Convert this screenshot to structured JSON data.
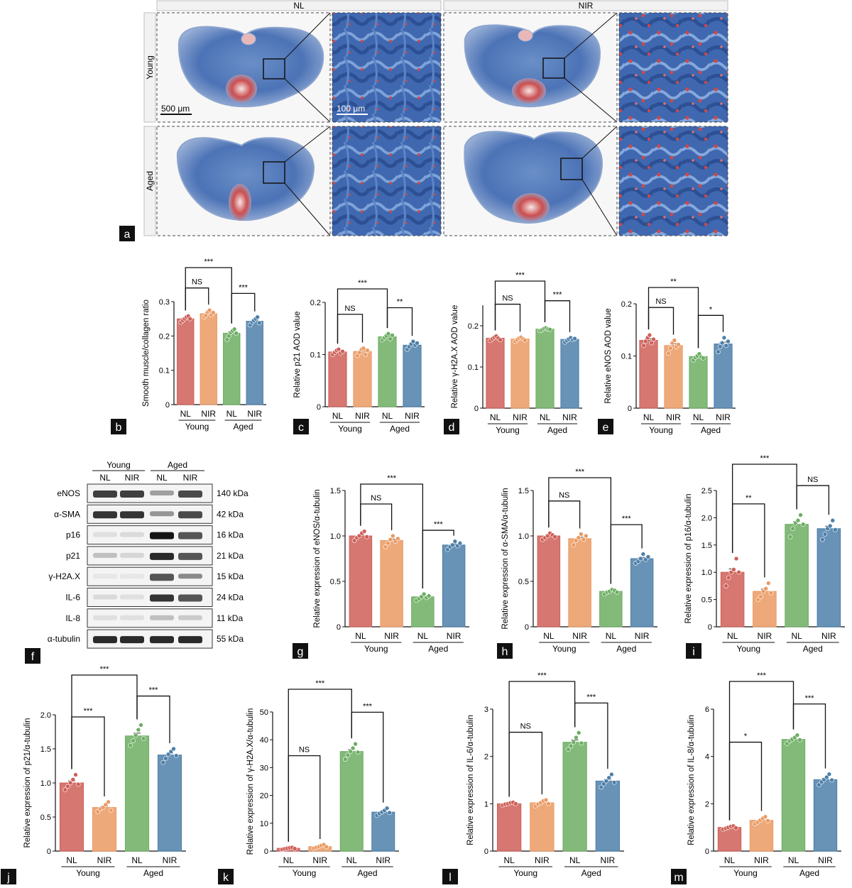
{
  "panel_a": {
    "col_headers": [
      "NL",
      "NIR"
    ],
    "row_headers": [
      "Young",
      "Aged"
    ],
    "scale_bars": [
      "500 μm",
      "100 μm"
    ],
    "letter": "a"
  },
  "panel_f": {
    "letter": "f",
    "groups": [
      "Young",
      "Aged"
    ],
    "lanes": [
      "NL",
      "NIR",
      "NL",
      "NIR"
    ],
    "proteins": [
      {
        "name": "eNOS",
        "kda": "140 kDa"
      },
      {
        "name": "α-SMA",
        "kda": "42 kDa"
      },
      {
        "name": "p16",
        "kda": "16 kDa"
      },
      {
        "name": "p21",
        "kda": "21 kDa"
      },
      {
        "name": "γ-H2A.X",
        "kda": "15 kDa"
      },
      {
        "name": "IL-6",
        "kda": "24 kDa"
      },
      {
        "name": "IL-8",
        "kda": "11 kDa"
      },
      {
        "name": "α-tubulin",
        "kda": "55 kDa"
      }
    ]
  },
  "colors": {
    "young_nl": "#cf5f58",
    "young_nir": "#ea9a63",
    "aged_nl": "#6dae63",
    "aged_nir": "#4d7fa9"
  },
  "chart_data": [
    {
      "id": "b",
      "type": "bar",
      "letter": "b",
      "ylabel": "Smooth muscle/collagen ratio",
      "ylim": [
        0,
        0.3
      ],
      "yticks": [
        "0",
        "0.1",
        "0.2",
        "0.3"
      ],
      "categories": [
        "NL",
        "NIR",
        "NL",
        "NIR"
      ],
      "groups": [
        "Young",
        "Aged"
      ],
      "values": [
        0.25,
        0.265,
        0.208,
        0.243
      ],
      "points": [
        [
          0.24,
          0.245,
          0.25,
          0.255,
          0.258,
          0.25
        ],
        [
          0.255,
          0.26,
          0.27,
          0.275,
          0.262,
          0.268
        ],
        [
          0.19,
          0.2,
          0.21,
          0.215,
          0.22,
          0.208
        ],
        [
          0.232,
          0.24,
          0.245,
          0.25,
          0.255,
          0.238
        ]
      ],
      "sig": [
        {
          "label": "***",
          "from": 0,
          "to": 2,
          "level": 2
        },
        {
          "label": "NS",
          "from": 0,
          "to": 1,
          "level": 1
        },
        {
          "label": "***",
          "from": 2,
          "to": 3,
          "level": 1
        }
      ]
    },
    {
      "id": "c",
      "type": "bar",
      "letter": "c",
      "ylabel": "Relative p21 AOD value",
      "ylim": [
        0,
        0.2
      ],
      "yticks": [
        "0",
        "0.1",
        "0.2"
      ],
      "categories": [
        "NL",
        "NIR",
        "NL",
        "NIR"
      ],
      "groups": [
        "Young",
        "Aged"
      ],
      "values": [
        0.105,
        0.106,
        0.134,
        0.118
      ],
      "points": [
        [
          0.1,
          0.104,
          0.108,
          0.11,
          0.103,
          0.106
        ],
        [
          0.098,
          0.104,
          0.11,
          0.112,
          0.1,
          0.108
        ],
        [
          0.128,
          0.132,
          0.136,
          0.14,
          0.13,
          0.137
        ],
        [
          0.11,
          0.115,
          0.12,
          0.125,
          0.118,
          0.122
        ]
      ],
      "sig": [
        {
          "label": "***",
          "from": 0,
          "to": 2,
          "level": 2
        },
        {
          "label": "NS",
          "from": 0,
          "to": 1,
          "level": 1
        },
        {
          "label": "**",
          "from": 2,
          "to": 3,
          "level": 1
        }
      ]
    },
    {
      "id": "d",
      "type": "bar",
      "letter": "d",
      "ylabel": "Relative γ-H2A.X AOD value",
      "ylim": [
        0,
        0.25
      ],
      "yticks": [
        "0",
        "0.1",
        "0.2"
      ],
      "categories": [
        "NL",
        "NIR",
        "NL",
        "NIR"
      ],
      "groups": [
        "Young",
        "Aged"
      ],
      "values": [
        0.17,
        0.168,
        0.192,
        0.167
      ],
      "points": [
        [
          0.164,
          0.168,
          0.172,
          0.175,
          0.17,
          0.166
        ],
        [
          0.162,
          0.166,
          0.17,
          0.172,
          0.168,
          0.165
        ],
        [
          0.188,
          0.19,
          0.193,
          0.195,
          0.192,
          0.191
        ],
        [
          0.16,
          0.164,
          0.168,
          0.171,
          0.166,
          0.169
        ]
      ],
      "sig": [
        {
          "label": "***",
          "from": 0,
          "to": 2,
          "level": 2
        },
        {
          "label": "NS",
          "from": 0,
          "to": 1,
          "level": 1
        },
        {
          "label": "***",
          "from": 2,
          "to": 3,
          "level": 1
        }
      ]
    },
    {
      "id": "e",
      "type": "bar",
      "letter": "e",
      "ylabel": "Relative eNOS AOD value",
      "ylim": [
        0,
        0.2
      ],
      "yticks": [
        "0",
        "0.1",
        "0.2"
      ],
      "categories": [
        "NL",
        "NIR",
        "NL",
        "NIR"
      ],
      "groups": [
        "Young",
        "Aged"
      ],
      "values": [
        0.13,
        0.12,
        0.099,
        0.123
      ],
      "points": [
        [
          0.12,
          0.128,
          0.135,
          0.14,
          0.125,
          0.132
        ],
        [
          0.105,
          0.115,
          0.125,
          0.13,
          0.118,
          0.122
        ],
        [
          0.092,
          0.097,
          0.1,
          0.104,
          0.098,
          0.096
        ],
        [
          0.108,
          0.118,
          0.125,
          0.135,
          0.12,
          0.128
        ]
      ],
      "sig": [
        {
          "label": "**",
          "from": 0,
          "to": 2,
          "level": 2
        },
        {
          "label": "NS",
          "from": 0,
          "to": 1,
          "level": 1
        },
        {
          "label": "*",
          "from": 2,
          "to": 3,
          "level": 1
        }
      ]
    },
    {
      "id": "g",
      "type": "bar",
      "letter": "g",
      "ylabel": "Relative expression of eNOS/α-tubulin",
      "ylim": [
        0,
        1.5
      ],
      "yticks": [
        "0",
        "0.5",
        "1.0",
        "1.5"
      ],
      "categories": [
        "NL",
        "NIR",
        "NL",
        "NIR"
      ],
      "groups": [
        "Young",
        "Aged"
      ],
      "values": [
        1.0,
        0.95,
        0.33,
        0.9
      ],
      "points": [
        [
          0.95,
          0.98,
          1.0,
          1.03,
          1.05,
          0.99
        ],
        [
          0.88,
          0.92,
          0.96,
          1.0,
          0.94,
          0.97
        ],
        [
          0.29,
          0.31,
          0.33,
          0.36,
          0.32,
          0.34
        ],
        [
          0.85,
          0.88,
          0.9,
          0.94,
          0.89,
          0.92
        ]
      ],
      "sig": [
        {
          "label": "***",
          "from": 0,
          "to": 2,
          "level": 2
        },
        {
          "label": "NS",
          "from": 0,
          "to": 1,
          "level": 1
        },
        {
          "label": "***",
          "from": 2,
          "to": 3,
          "level": 1
        }
      ]
    },
    {
      "id": "h",
      "type": "bar",
      "letter": "h",
      "ylabel": "Relative expression of α-SMA/α-tubulin",
      "ylim": [
        0,
        1.5
      ],
      "yticks": [
        "0",
        "0.5",
        "1.0",
        "1.5"
      ],
      "categories": [
        "NL",
        "NIR",
        "NL",
        "NIR"
      ],
      "groups": [
        "Young",
        "Aged"
      ],
      "values": [
        1.0,
        0.97,
        0.39,
        0.75
      ],
      "points": [
        [
          0.96,
          0.98,
          1.0,
          1.03,
          1.01,
          0.99
        ],
        [
          0.9,
          0.95,
          0.98,
          1.02,
          0.96,
          1.0
        ],
        [
          0.36,
          0.38,
          0.39,
          0.41,
          0.4,
          0.38
        ],
        [
          0.7,
          0.72,
          0.75,
          0.8,
          0.74,
          0.77
        ]
      ],
      "sig": [
        {
          "label": "***",
          "from": 0,
          "to": 2,
          "level": 2
        },
        {
          "label": "NS",
          "from": 0,
          "to": 1,
          "level": 1
        },
        {
          "label": "***",
          "from": 2,
          "to": 3,
          "level": 1
        }
      ]
    },
    {
      "id": "i",
      "type": "bar",
      "letter": "i",
      "ylabel": "Relative expression of p16/α-tubulin",
      "ylim": [
        0,
        2.5
      ],
      "yticks": [
        "0",
        "0.5",
        "1.0",
        "1.5",
        "2.0",
        "2.5"
      ],
      "categories": [
        "NL",
        "NIR",
        "NL",
        "NIR"
      ],
      "groups": [
        "Young",
        "Aged"
      ],
      "values": [
        1.0,
        0.65,
        1.88,
        1.8
      ],
      "points": [
        [
          0.75,
          0.9,
          1.0,
          1.05,
          1.25,
          1.0
        ],
        [
          0.5,
          0.55,
          0.65,
          0.7,
          0.8,
          0.62
        ],
        [
          1.65,
          1.8,
          1.9,
          1.95,
          2.05,
          1.88
        ],
        [
          1.6,
          1.7,
          1.8,
          1.85,
          1.95,
          1.78
        ]
      ],
      "sig": [
        {
          "label": "***",
          "from": 0,
          "to": 2,
          "level": 2
        },
        {
          "label": "**",
          "from": 0,
          "to": 1,
          "level": 1
        },
        {
          "label": "NS",
          "from": 2,
          "to": 3,
          "level": 1
        }
      ]
    },
    {
      "id": "j",
      "type": "bar",
      "letter": "j",
      "ylabel": "Relative expression of p21/α-tubulin",
      "ylim": [
        0,
        2.0
      ],
      "yticks": [
        "0",
        "0.5",
        "1.0",
        "1.5",
        "2.0"
      ],
      "categories": [
        "NL",
        "NIR",
        "NL",
        "NIR"
      ],
      "groups": [
        "Young",
        "Aged"
      ],
      "values": [
        1.0,
        0.64,
        1.69,
        1.41
      ],
      "points": [
        [
          0.9,
          0.95,
          1.0,
          1.05,
          1.12,
          0.98
        ],
        [
          0.58,
          0.62,
          0.64,
          0.68,
          0.72,
          0.6
        ],
        [
          1.55,
          1.62,
          1.7,
          1.78,
          1.85,
          1.65
        ],
        [
          1.3,
          1.36,
          1.42,
          1.46,
          1.5,
          1.4
        ]
      ],
      "sig": [
        {
          "label": "***",
          "from": 0,
          "to": 2,
          "level": 2
        },
        {
          "label": "***",
          "from": 0,
          "to": 1,
          "level": 1
        },
        {
          "label": "***",
          "from": 2,
          "to": 3,
          "level": 1
        }
      ]
    },
    {
      "id": "k",
      "type": "bar",
      "letter": "k",
      "ylabel": "Relative expression of γ-H2A.X/α-tubulin",
      "ylim": [
        0,
        50
      ],
      "yticks": [
        "0",
        "10",
        "20",
        "30",
        "40",
        "50"
      ],
      "categories": [
        "NL",
        "NIR",
        "NL",
        "NIR"
      ],
      "groups": [
        "Young",
        "Aged"
      ],
      "values": [
        1.0,
        1.6,
        35.8,
        14.0
      ],
      "points": [
        [
          0.6,
          0.8,
          1.0,
          1.2,
          1.3,
          0.9
        ],
        [
          1.0,
          1.3,
          1.6,
          2.0,
          2.3,
          1.5
        ],
        [
          33.0,
          34.5,
          35.8,
          37.0,
          38.5,
          35.5
        ],
        [
          12.8,
          13.5,
          14.0,
          14.6,
          15.4,
          13.8
        ]
      ],
      "sig": [
        {
          "label": "***",
          "from": 0,
          "to": 2,
          "level": 2
        },
        {
          "label": "NS",
          "from": 0,
          "to": 1,
          "level": 1
        },
        {
          "label": "***",
          "from": 2,
          "to": 3,
          "level": 1
        }
      ]
    },
    {
      "id": "l",
      "type": "bar",
      "letter": "l",
      "ylabel": "Relative expression of IL-6/α-tubulin",
      "ylim": [
        0,
        3
      ],
      "yticks": [
        "0",
        "1",
        "2",
        "3"
      ],
      "categories": [
        "NL",
        "NIR",
        "NL",
        "NIR"
      ],
      "groups": [
        "Young",
        "Aged"
      ],
      "values": [
        1.0,
        1.02,
        2.3,
        1.48
      ],
      "points": [
        [
          0.97,
          0.99,
          1.0,
          1.02,
          1.03,
          1.0
        ],
        [
          0.95,
          0.99,
          1.02,
          1.06,
          1.08,
          1.0
        ],
        [
          2.15,
          2.22,
          2.3,
          2.4,
          2.5,
          2.28
        ],
        [
          1.35,
          1.42,
          1.48,
          1.55,
          1.62,
          1.45
        ]
      ],
      "sig": [
        {
          "label": "***",
          "from": 0,
          "to": 2,
          "level": 2
        },
        {
          "label": "NS",
          "from": 0,
          "to": 1,
          "level": 1
        },
        {
          "label": "***",
          "from": 2,
          "to": 3,
          "level": 1
        }
      ]
    },
    {
      "id": "m",
      "type": "bar",
      "letter": "m",
      "ylabel": "Relative expression of IL-8/α-tubulin",
      "ylim": [
        0,
        6
      ],
      "yticks": [
        "0",
        "2",
        "4",
        "6"
      ],
      "categories": [
        "NL",
        "NIR",
        "NL",
        "NIR"
      ],
      "groups": [
        "Young",
        "Aged"
      ],
      "values": [
        1.0,
        1.3,
        4.72,
        3.02
      ],
      "points": [
        [
          0.92,
          0.96,
          1.0,
          1.04,
          1.06,
          0.98
        ],
        [
          1.15,
          1.22,
          1.3,
          1.38,
          1.45,
          1.28
        ],
        [
          4.55,
          4.65,
          4.72,
          4.8,
          4.9,
          4.7
        ],
        [
          2.8,
          2.92,
          3.02,
          3.12,
          3.25,
          3.0
        ]
      ],
      "sig": [
        {
          "label": "***",
          "from": 0,
          "to": 2,
          "level": 2
        },
        {
          "label": "*",
          "from": 0,
          "to": 1,
          "level": 1
        },
        {
          "label": "***",
          "from": 2,
          "to": 3,
          "level": 1
        }
      ]
    }
  ]
}
